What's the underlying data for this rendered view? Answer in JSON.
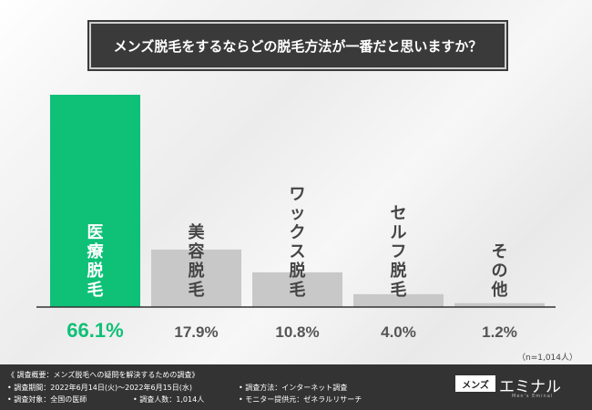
{
  "title": "メンズ脱毛をするならどの脱毛方法が一番だと思いますか？",
  "chart_data": {
    "type": "bar",
    "categories": [
      "医療脱毛",
      "美容脱毛",
      "ワックス脱毛",
      "セルフ脱毛",
      "その他"
    ],
    "values": [
      66.1,
      17.9,
      10.8,
      4.0,
      1.2
    ],
    "value_labels": [
      "66.1%",
      "17.9%",
      "10.8%",
      "4.0%",
      "1.2%"
    ],
    "ylim": [
      0,
      70
    ],
    "colors": [
      "#0fc077",
      "#c8c8c8",
      "#c8c8c8",
      "#c8c8c8",
      "#c8c8c8"
    ],
    "sample_note": "（n=1,014人）"
  },
  "footer": {
    "overview": "《 調査概要：メンズ脱毛への疑問を解決するための調査》",
    "period": "• 調査期間：2022年6月14日(火)～2022年6月15日(水)",
    "method": "• 調査方法：インターネット調査",
    "target": "• 調査対象：全国の医師",
    "count": "• 調査人数：1,014人",
    "provider": "• モニター提供元：ゼネラルリサーチ"
  },
  "logo": {
    "box": "メンズ",
    "text": "エミナル",
    "sub": "Men's Eminal"
  }
}
